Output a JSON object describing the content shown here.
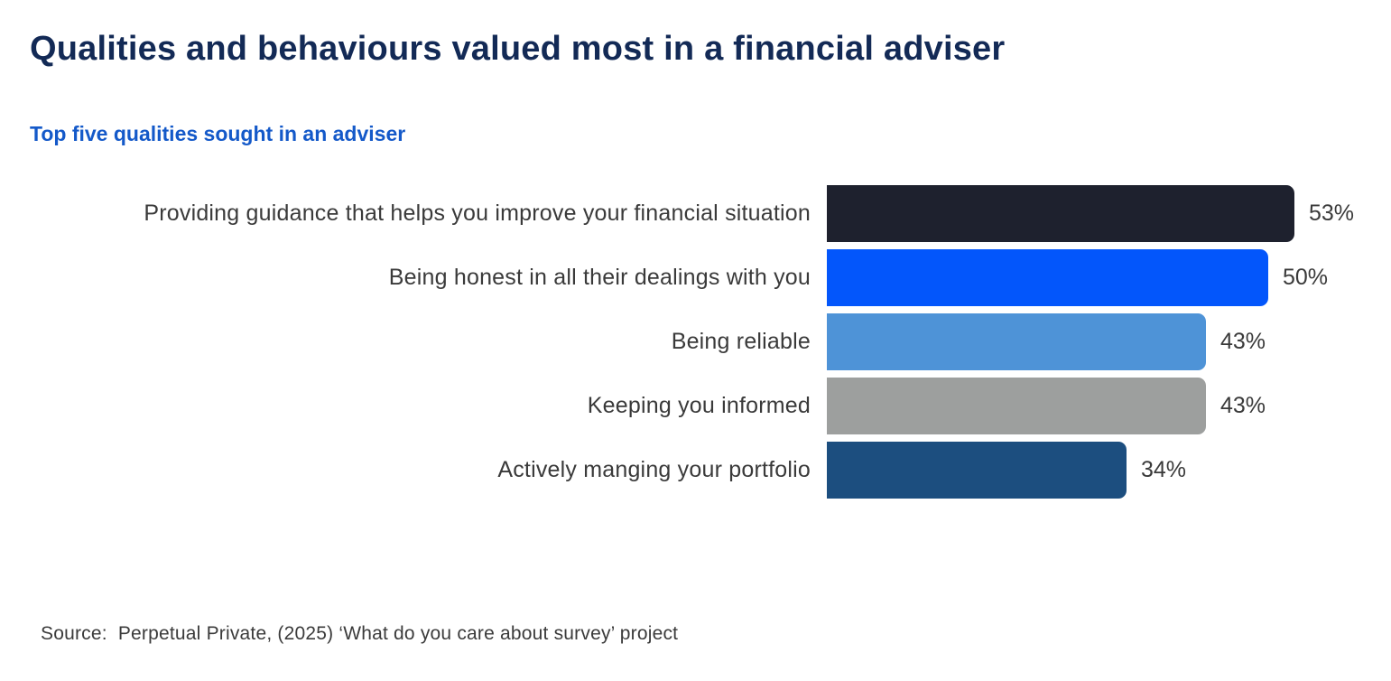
{
  "page": {
    "title": "Qualities and behaviours valued most in a financial adviser",
    "subtitle": "Top five qualities sought in an adviser",
    "source": "Source:  Perpetual Private, (2025) ‘What do you care about survey’ project"
  },
  "colors": {
    "background": "#FFFFFF",
    "title_text": "#132A56",
    "subtitle_text": "#1459C9",
    "label_text": "#3A3A3A",
    "source_text": "#3B3B3B"
  },
  "chart_data": {
    "type": "bar",
    "orientation": "horizontal",
    "title": "Qualities and behaviours valued most in a financial adviser",
    "subtitle": "Top five qualities sought in an adviser",
    "categories": [
      "Providing guidance that helps you improve your financial situation",
      "Being honest in all their dealings with you",
      "Being reliable",
      "Keeping you informed",
      "Actively manging your portfolio"
    ],
    "values": [
      53,
      50,
      43,
      43,
      34
    ],
    "value_labels": [
      "53%",
      "50%",
      "43%",
      "43%",
      "34%"
    ],
    "bar_colors": [
      "#1E212E",
      "#0356FB",
      "#4E93D7",
      "#9D9F9E",
      "#1C4E7F"
    ],
    "xlim": [
      0,
      53
    ],
    "grid": false,
    "legend": false,
    "data_labels_position": "right",
    "source": "Source:  Perpetual Private, (2025) ‘What do you care about survey’ project"
  }
}
